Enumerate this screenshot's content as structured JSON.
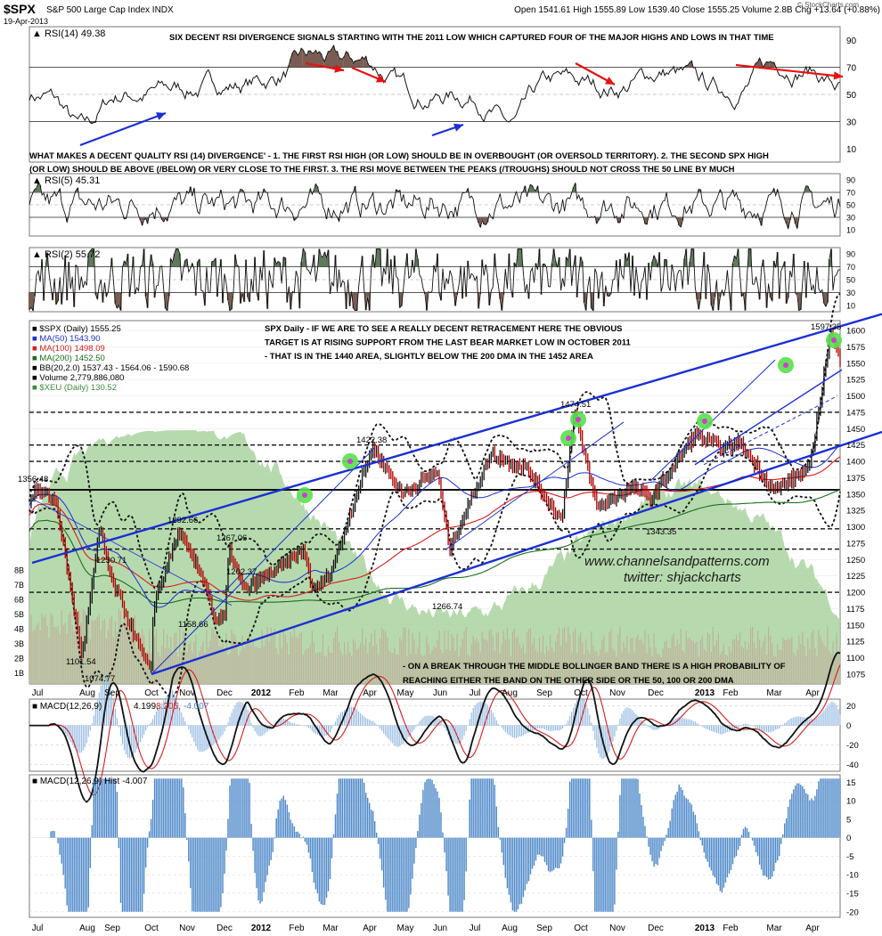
{
  "header": {
    "symbol": "$SPX",
    "name": "S&P 500 Large Cap Index",
    "exchange": "INDX",
    "date": "19-Apr-2013",
    "ohlc": "Open 1541.61  High 1555.89  Low 1539.40  Close 1555.25  Volume 2.8B  Chg +13.64 (+0.88%)",
    "brand": "© StockCharts.com"
  },
  "colors": {
    "blue_line": "#1a2fd6",
    "red_arrow": "#e81010",
    "green_shade": "#5f7a5a",
    "brown_shade": "#7a5d52",
    "volume_fill": "#a9d3a0",
    "macd_hist": "#4a86c8",
    "highlight": "#58e04a",
    "magenta": "#d23ad8"
  },
  "panels": {
    "rsi14": {
      "label": "RSI(14) 49.38",
      "note": "SIX DECENT RSI DIVERGENCE SIGNALS STARTING WITH THE 2011 LOW WHICH CAPTURED FOUR OF THE MAJOR HIGHS AND LOWS IN THAT TIME",
      "ticks": [
        "90",
        "70",
        "50",
        "30",
        "10"
      ]
    },
    "rsi_note": [
      "WHAT MAKES A DECENT QUALITY RSI (14) DIVERGENCE' - 1. THE FIRST RSI HIGH (OR LOW) SHOULD BE IN OVERBOUGHT (OR OVERSOLD TERRITORY). 2. THE SECOND SPX HIGH",
      "(OR LOW) SHOULD BE ABOVE (/BELOW) OR VERY CLOSE TO THE FIRST. 3. THE RSI MOVE BETWEEN THE PEAKS (/TROUGHS) SHOULD NOT CROSS THE 50 LINE BY MUCH"
    ],
    "rsi5": {
      "label": "RSI(5) 45.31",
      "ticks": [
        "90",
        "70",
        "50",
        "30",
        "10"
      ]
    },
    "rsi2": {
      "label": "RSI(2) 55.72",
      "ticks": [
        "90",
        "70",
        "50",
        "30",
        "10"
      ]
    },
    "macd": {
      "label_a": "MACD(12,26,9)",
      "v1": "4.199,",
      "v2": "8.205,",
      "v3": "-4.007",
      "ticks": [
        "20",
        "0",
        "-20",
        "-40"
      ]
    },
    "hist": {
      "label": "MACD(12,26,9) Hist -4.007",
      "ticks": [
        "15",
        "10",
        "5",
        "0",
        "-5",
        "-10",
        "-15",
        "-20"
      ]
    }
  },
  "legend": [
    {
      "text": "$SPX (Daily) 1555.25",
      "color": "#000000"
    },
    {
      "text": "MA(50) 1543.90",
      "color": "#1a2fd6"
    },
    {
      "text": "MA(100) 1498.09",
      "color": "#d81c1c"
    },
    {
      "text": "MA(200) 1452.50",
      "color": "#1c6e1c"
    },
    {
      "text": "BB(20,2.0) 1537.43 - 1564.06 - 1590.68",
      "color": "#000000"
    },
    {
      "text": "Volume 2,779,886,080",
      "color": "#000000"
    },
    {
      "text": "$XEU (Daily) 130.52",
      "color": "#3c8a3c"
    }
  ],
  "annotations": {
    "spx_note": [
      "SPX Daily - IF WE ARE TO SEE A REALLY DECENT RETRACEMENT HERE THE OBVIOUS",
      "TARGET IS AT RISING SUPPORT FROM THE LAST BEAR MARKET LOW IN OCTOBER 2011",
      "- THAT IS IN THE 1440 AREA, SLIGHTLY BELOW THE 200 DMA IN THE 1452 AREA"
    ],
    "bb_note": [
      "- ON A BREAK THROUGH THE MIDDLE BOLLINGER BAND THERE IS A HIGH PROBABILITY OF",
      "REACHING EITHER THE BAND ON THE OTHER SIDE OR THE 50, 100 OR 200 DMA"
    ],
    "watermark1": "www.channelsandpatterns.com",
    "watermark2": "twitter: shjackcharts"
  },
  "chart_data": {
    "type": "line",
    "title": "$SPX S&P 500 Large Cap Index INDX",
    "price_ticks": [
      1075,
      1100,
      1125,
      1150,
      1175,
      1200,
      1225,
      1250,
      1275,
      1300,
      1325,
      1350,
      1375,
      1400,
      1425,
      1450,
      1475,
      1500,
      1525,
      1550,
      1575,
      1600
    ],
    "volume_ticks": [
      "1B",
      "2B",
      "3B",
      "4B",
      "5B",
      "6B",
      "7B",
      "8B"
    ],
    "month_labels": [
      "Jul",
      "Aug",
      "Sep",
      "Oct",
      "Nov",
      "Dec",
      "2012",
      "Feb",
      "Mar",
      "Apr",
      "May",
      "Jun",
      "Jul",
      "Aug",
      "Sep",
      "Oct",
      "Nov",
      "Dec",
      "2013",
      "Feb",
      "Mar",
      "Apr"
    ],
    "pivots": [
      {
        "date": "2011-07-01",
        "value": 1356.48,
        "label": "1356.48"
      },
      {
        "date": "2011-08-09",
        "value": 1101.54,
        "label": "1101.54"
      },
      {
        "date": "2011-08-31",
        "value": 1230.71,
        "label": "1230.71"
      },
      {
        "date": "2011-10-04",
        "value": 1074.77,
        "label": "1074.77"
      },
      {
        "date": "2011-10-27",
        "value": 1292.66,
        "label": "1292.66"
      },
      {
        "date": "2011-11-25",
        "value": 1158.66,
        "label": "1158.66"
      },
      {
        "date": "2011-12-07",
        "value": 1267.06,
        "label": "1267.06"
      },
      {
        "date": "2011-12-19",
        "value": 1202.37,
        "label": "1202.37"
      },
      {
        "date": "2012-04-02",
        "value": 1422.38,
        "label": "1422.38"
      },
      {
        "date": "2012-06-04",
        "value": 1266.74,
        "label": "1266.74"
      },
      {
        "date": "2012-09-14",
        "value": 1474.51,
        "label": "1474.51"
      },
      {
        "date": "2012-11-16",
        "value": 1343.35,
        "label": "1343.35"
      },
      {
        "date": "2013-04-11",
        "value": 1597.35,
        "label": "1597.35"
      },
      {
        "date": "2013-04-19",
        "value": 1555.25
      }
    ]
  }
}
